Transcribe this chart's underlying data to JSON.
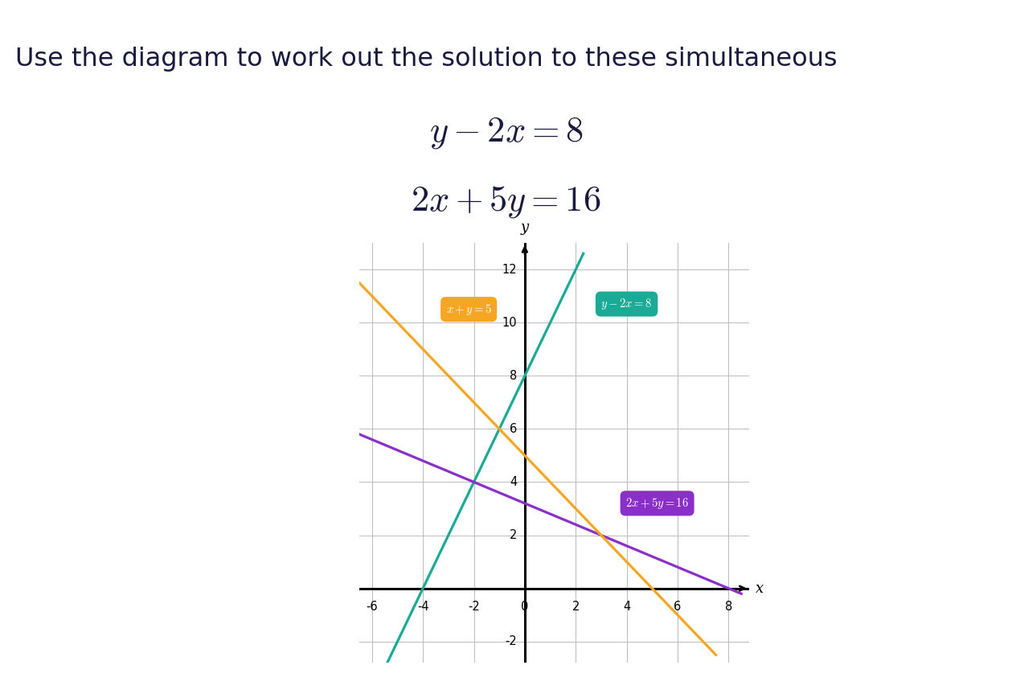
{
  "title_text": "Use the diagram to work out the solution to these simultaneous",
  "xlim": [
    -6.5,
    8.8
  ],
  "ylim": [
    -2.8,
    13.0
  ],
  "xticks": [
    -6,
    -4,
    -2,
    0,
    2,
    4,
    6,
    8
  ],
  "yticks": [
    -2,
    0,
    2,
    4,
    6,
    8,
    10,
    12
  ],
  "line1_color": "#1aaa96",
  "line1_bg": "#1aaa96",
  "line2_color": "#8b2fc9",
  "line2_bg": "#8b2fc9",
  "line3_color": "#f5a623",
  "line3_bg": "#f5a623",
  "background_color": "#ffffff",
  "grid_color": "#bbbbbb",
  "title_color": "#1a1a3e",
  "header_bg": "#2d3470",
  "eq_color": "#1a1a3e"
}
